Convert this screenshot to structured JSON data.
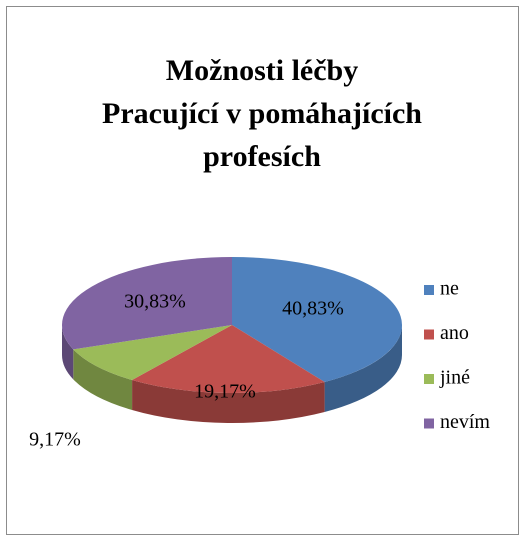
{
  "chart_data": {
    "type": "pie",
    "title": [
      "Možnosti léčby",
      "Pracující v pomáhajících",
      "profesích"
    ],
    "categories": [
      "ne",
      "ano",
      "jiné",
      "nevím"
    ],
    "values": [
      40.83,
      19.17,
      9.17,
      30.83
    ],
    "value_labels": [
      "40,83%",
      "19,17%",
      "9,17%",
      "30,83%"
    ],
    "colors": [
      "#4f81bd",
      "#c0504d",
      "#9bbb59",
      "#8064a2"
    ],
    "legend": "right"
  }
}
